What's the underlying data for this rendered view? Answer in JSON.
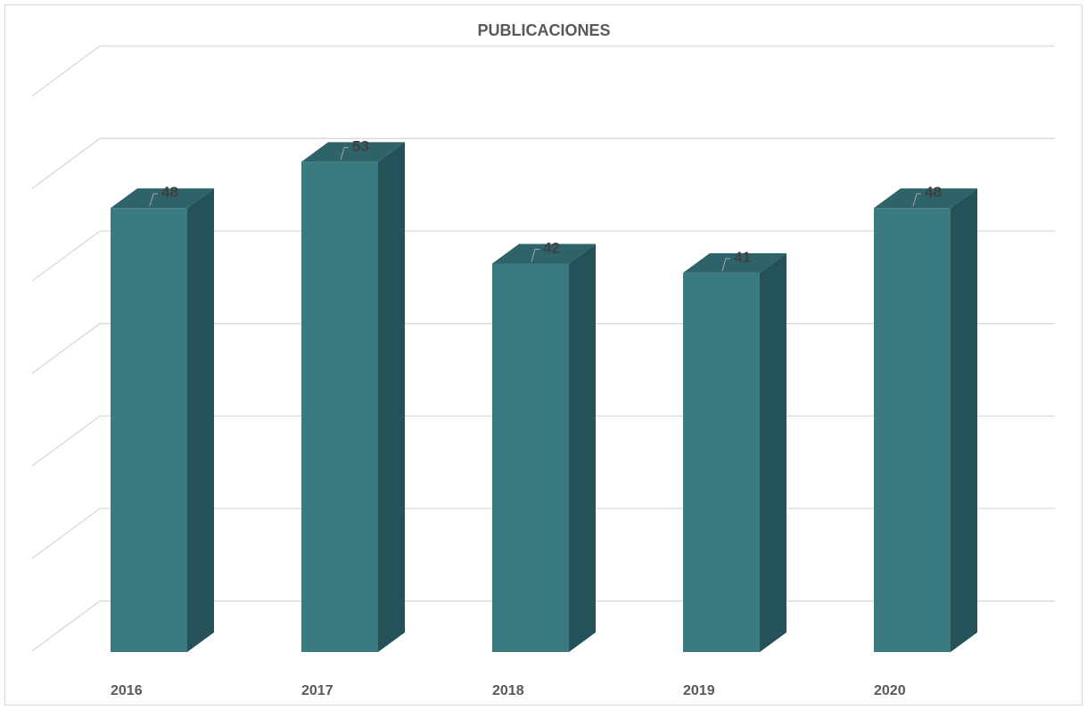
{
  "chart_data": {
    "type": "bar",
    "style": "3d-column",
    "title": "PUBLICACIONES",
    "xlabel": "",
    "ylabel": "",
    "categories": [
      "2016",
      "2017",
      "2018",
      "2019",
      "2020"
    ],
    "values": [
      48,
      53,
      42,
      41,
      48
    ],
    "ylim": [
      0,
      60
    ],
    "grid": true,
    "legend": "none",
    "data_labels": true,
    "colors": {
      "front": "#3a7b82",
      "side": "#255159",
      "top": "#2d6369",
      "gridline": "#d9d9d9",
      "leader": "#a6a6a6"
    }
  }
}
